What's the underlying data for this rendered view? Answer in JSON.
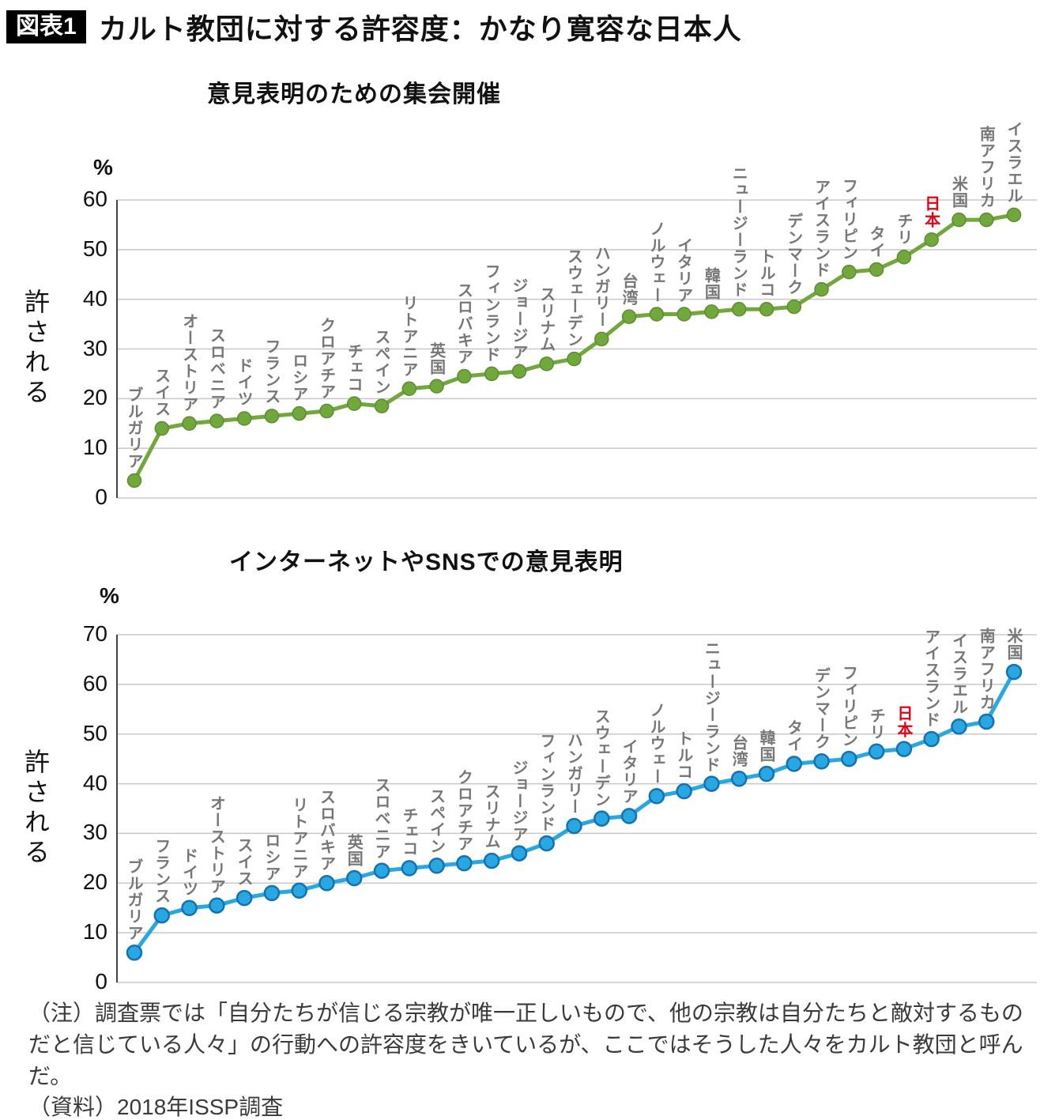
{
  "header": {
    "tag": "図表1",
    "title": "カルト教団に対する許容度：かなり寛容な日本人"
  },
  "note": "（注）調査票では「自分たちが信じる宗教が唯一正しいもので、他の宗教は自分たちと敵対するものだと信じている人々」の行動への許容度をきいているが、ここではそうした人々をカルト教団と呼んだ。",
  "source": "（資料）2018年ISSP調査",
  "colors": {
    "series_line": [
      "#71A83C",
      "#29A7E1"
    ],
    "series_dot_stroke": [
      "#5E8C32",
      "#1272B4"
    ],
    "japan_label": "#E60012",
    "country_label": "#777777",
    "grid": "#C8C8C8",
    "axis": "#444444"
  },
  "chart_data": [
    {
      "type": "line",
      "title": "意見表明のための集会開催",
      "unit": "%",
      "ylabel": "許される",
      "ylim": [
        0,
        60
      ],
      "ytick_step": 10,
      "grid": true,
      "highlight_category": "日本",
      "categories": [
        "ブルガリア",
        "スイス",
        "オーストリア",
        "スロベニア",
        "ドイツ",
        "フランス",
        "ロシア",
        "クロアチア",
        "チェコ",
        "スペイン",
        "リトアニア",
        "英国",
        "スロバキア",
        "フィンランド",
        "ジョージア",
        "スリナム",
        "スウェーデン",
        "ハンガリー",
        "台湾",
        "ノルウェー",
        "イタリア",
        "韓国",
        "ニュージーランド",
        "トルコ",
        "デンマーク",
        "アイスランド",
        "フィリピン",
        "タイ",
        "チリ",
        "日本",
        "米国",
        "南アフリカ",
        "イスラエル"
      ],
      "values": [
        3.5,
        14,
        15,
        15.5,
        16,
        16.5,
        17,
        17.5,
        19,
        18.5,
        22,
        22.5,
        24.5,
        25,
        25.5,
        27,
        28,
        32,
        36.5,
        37,
        37,
        37.5,
        38,
        38,
        38.5,
        42,
        45.5,
        46,
        48.5,
        52,
        56,
        56,
        57
      ]
    },
    {
      "type": "line",
      "title": "インターネットやSNSでの意見表明",
      "unit": "%",
      "ylabel": "許される",
      "ylim": [
        0,
        70
      ],
      "ytick_step": 10,
      "grid": true,
      "highlight_category": "日本",
      "categories": [
        "ブルガリア",
        "フランス",
        "ドイツ",
        "オーストリア",
        "スイス",
        "ロシア",
        "リトアニア",
        "スロバキア",
        "英国",
        "スロベニア",
        "チェコ",
        "スペイン",
        "クロアチア",
        "スリナム",
        "ジョージア",
        "フィンランド",
        "ハンガリー",
        "スウェーデン",
        "イタリア",
        "ノルウェー",
        "トルコ",
        "ニュージーランド",
        "台湾",
        "韓国",
        "タイ",
        "デンマーク",
        "フィリピン",
        "チリ",
        "日本",
        "アイスランド",
        "イスラエル",
        "南アフリカ",
        "米国"
      ],
      "values": [
        6,
        13.5,
        15,
        15.5,
        17,
        18,
        18.5,
        20,
        21,
        22.5,
        23,
        23.5,
        24,
        24.5,
        26,
        28,
        31.5,
        33,
        33.5,
        37.5,
        38.5,
        40,
        41,
        42,
        44,
        44.5,
        45,
        46.5,
        47,
        49,
        51.5,
        52.5,
        62.5
      ]
    }
  ]
}
